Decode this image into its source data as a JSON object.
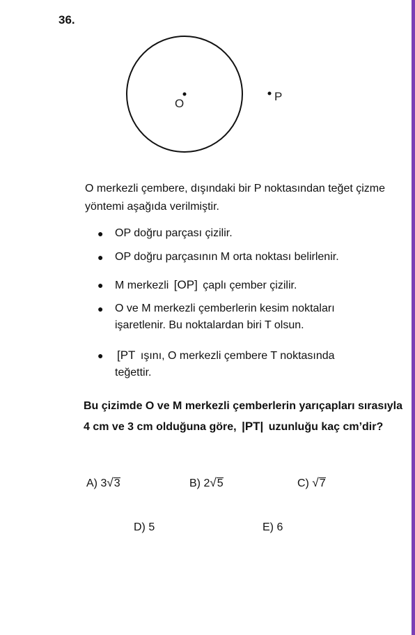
{
  "question_number": "36.",
  "figure": {
    "center_label": "O",
    "point_label": "P"
  },
  "intro": "O merkezli çembere, dışındaki bir P noktasından teğet çizme yöntemi aşağıda verilmiştir.",
  "steps": [
    {
      "text": "OP doğru parçası çizilir."
    },
    {
      "text": "OP doğru parçasının M orta noktası belirlenir."
    },
    {
      "before": "M merkezli",
      "segment": "[OP]",
      "after": "çaplı çember çizilir."
    },
    {
      "line1": "O ve M merkezli çemberlerin kesim noktaları",
      "line2": "işaretlenir. Bu noktalardan biri T olsun."
    },
    {
      "segment": "[PT",
      "after": "ışını, O merkezli çembere T noktasında",
      "line2": "teğettir."
    }
  ],
  "question": {
    "part1": "Bu çizimde O ve M merkezli çemberlerin yarıçapları sırasıyla 4 cm ve 3 cm olduğuna göre,",
    "segment": "|PT|",
    "part2": "uzunluğu kaç cm’dir?"
  },
  "options": [
    {
      "letter": "A)",
      "coef": "3",
      "radicand": "3"
    },
    {
      "letter": "B)",
      "coef": "2",
      "radicand": "5"
    },
    {
      "letter": "C)",
      "coef": "",
      "radicand": "7"
    },
    {
      "letter": "D)",
      "value": "5"
    },
    {
      "letter": "E)",
      "value": "6"
    }
  ]
}
